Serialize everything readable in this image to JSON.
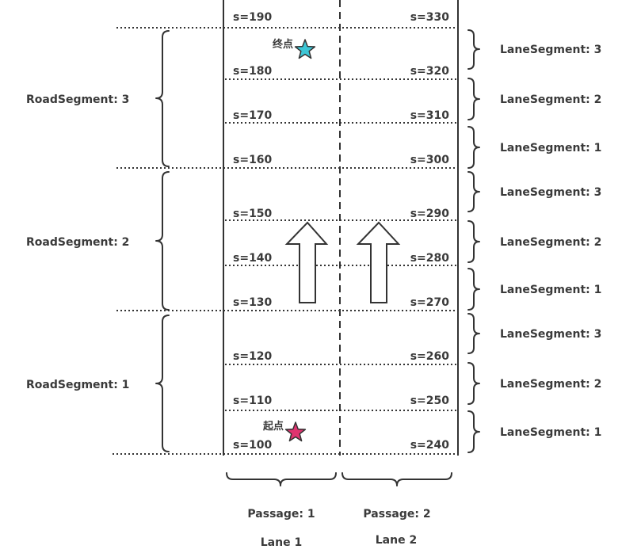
{
  "road_segments": [
    {
      "label": "RoadSegment: 3"
    },
    {
      "label": "RoadSegment: 2"
    },
    {
      "label": "RoadSegment: 1"
    }
  ],
  "lane_segments": [
    {
      "label": "LaneSegment: 3"
    },
    {
      "label": "LaneSegment: 2"
    },
    {
      "label": "LaneSegment: 1"
    },
    {
      "label": "LaneSegment: 3"
    },
    {
      "label": "LaneSegment: 2"
    },
    {
      "label": "LaneSegment: 1"
    },
    {
      "label": "LaneSegment: 3"
    },
    {
      "label": "LaneSegment: 2"
    },
    {
      "label": "LaneSegment: 1"
    }
  ],
  "lane1_s": [
    "s=190",
    "s=180",
    "s=170",
    "s=160",
    "s=150",
    "s=140",
    "s=130",
    "s=120",
    "s=110",
    "s=100"
  ],
  "lane2_s": [
    "s=330",
    "s=320",
    "s=310",
    "s=300",
    "s=290",
    "s=280",
    "s=270",
    "s=260",
    "s=250",
    "s=240"
  ],
  "passages": [
    {
      "passage": "Passage: 1",
      "lane": "Lane 1"
    },
    {
      "passage": "Passage: 2",
      "lane": "Lane 2"
    }
  ],
  "markers": {
    "end": {
      "label": "终点",
      "color": "#3cc6d6"
    },
    "start": {
      "label": "起点",
      "color": "#e0336f"
    }
  },
  "colors": {
    "line": "#333333",
    "text": "#3a3a3a"
  }
}
